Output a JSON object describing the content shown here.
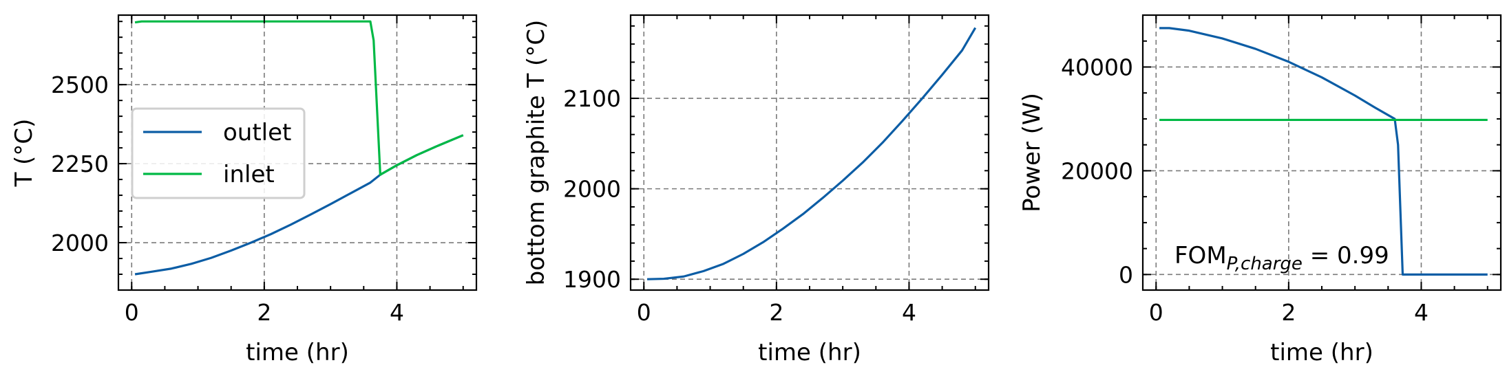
{
  "colors": {
    "outlet": "#0C5DA5",
    "inlet": "#00B945"
  },
  "chart_data": [
    {
      "type": "line",
      "xlabel": "time (hr)",
      "ylabel": "T (°C)",
      "xlim": [
        -0.2,
        5.2
      ],
      "ylim": [
        1850,
        2720
      ],
      "xticks": [
        0,
        2,
        4
      ],
      "yticks": [
        2000,
        2250,
        2500
      ],
      "xminor": 0.5,
      "yminor": 50,
      "grid": true,
      "legend": {
        "location": "center-left",
        "entries": [
          "outlet",
          "inlet"
        ]
      },
      "series": [
        {
          "name": "outlet",
          "color": "#0C5DA5",
          "x": [
            0.05,
            0.3,
            0.6,
            0.9,
            1.2,
            1.5,
            1.8,
            2.1,
            2.4,
            2.7,
            3.0,
            3.3,
            3.6,
            3.75,
            4.0,
            4.3,
            4.6,
            5.0
          ],
          "y": [
            1900,
            1908,
            1918,
            1933,
            1952,
            1975,
            2000,
            2027,
            2057,
            2089,
            2122,
            2156,
            2190,
            2215,
            2245,
            2277,
            2305,
            2340
          ]
        },
        {
          "name": "inlet",
          "color": "#00B945",
          "x": [
            0.05,
            0.15,
            1.0,
            2.0,
            3.0,
            3.6,
            3.65,
            3.75,
            4.0,
            4.3,
            4.6,
            5.0
          ],
          "y": [
            2697,
            2700,
            2700,
            2700,
            2700,
            2700,
            2640,
            2215,
            2245,
            2277,
            2305,
            2340
          ]
        }
      ]
    },
    {
      "type": "line",
      "xlabel": "time (hr)",
      "ylabel": "bottom graphite T (°C)",
      "xlim": [
        -0.2,
        5.2
      ],
      "ylim": [
        1888,
        2192
      ],
      "xticks": [
        0,
        2,
        4
      ],
      "yticks": [
        1900,
        2000,
        2100
      ],
      "xminor": 0.5,
      "yminor": 20,
      "grid": true,
      "series": [
        {
          "color": "#0C5DA5",
          "x": [
            0.05,
            0.3,
            0.6,
            0.9,
            1.2,
            1.5,
            1.8,
            2.1,
            2.4,
            2.7,
            3.0,
            3.3,
            3.6,
            3.9,
            4.2,
            4.5,
            4.8,
            5.0
          ],
          "y": [
            1900,
            1900.5,
            1903,
            1909,
            1917,
            1928,
            1941,
            1956,
            1972,
            1990,
            2009,
            2029,
            2051,
            2075,
            2100,
            2126,
            2153,
            2178
          ]
        }
      ]
    },
    {
      "type": "line",
      "xlabel": "time (hr)",
      "ylabel": "Power (W)",
      "xlim": [
        -0.2,
        5.2
      ],
      "ylim": [
        -3000,
        50000
      ],
      "xticks": [
        0,
        2,
        4
      ],
      "yticks": [
        0,
        20000,
        40000
      ],
      "xminor": 0.5,
      "yminor": 5000,
      "grid": true,
      "annotation": {
        "main": "FOM",
        "sub": "P,charge",
        "rest": " = 0.99"
      },
      "series": [
        {
          "color": "#0C5DA5",
          "x": [
            0.05,
            0.2,
            0.5,
            1.0,
            1.5,
            2.0,
            2.5,
            3.0,
            3.3,
            3.6,
            3.65,
            3.72,
            3.75,
            4.0,
            4.5,
            5.0
          ],
          "y": [
            47500,
            47500,
            47000,
            45500,
            43500,
            41000,
            38000,
            34500,
            32200,
            30000,
            25000,
            0,
            0,
            0,
            0,
            0
          ]
        },
        {
          "color": "#00B945",
          "x": [
            0.05,
            1.0,
            2.0,
            3.0,
            4.0,
            5.0
          ],
          "y": [
            29800,
            29800,
            29800,
            29800,
            29800,
            29800
          ]
        }
      ]
    }
  ]
}
